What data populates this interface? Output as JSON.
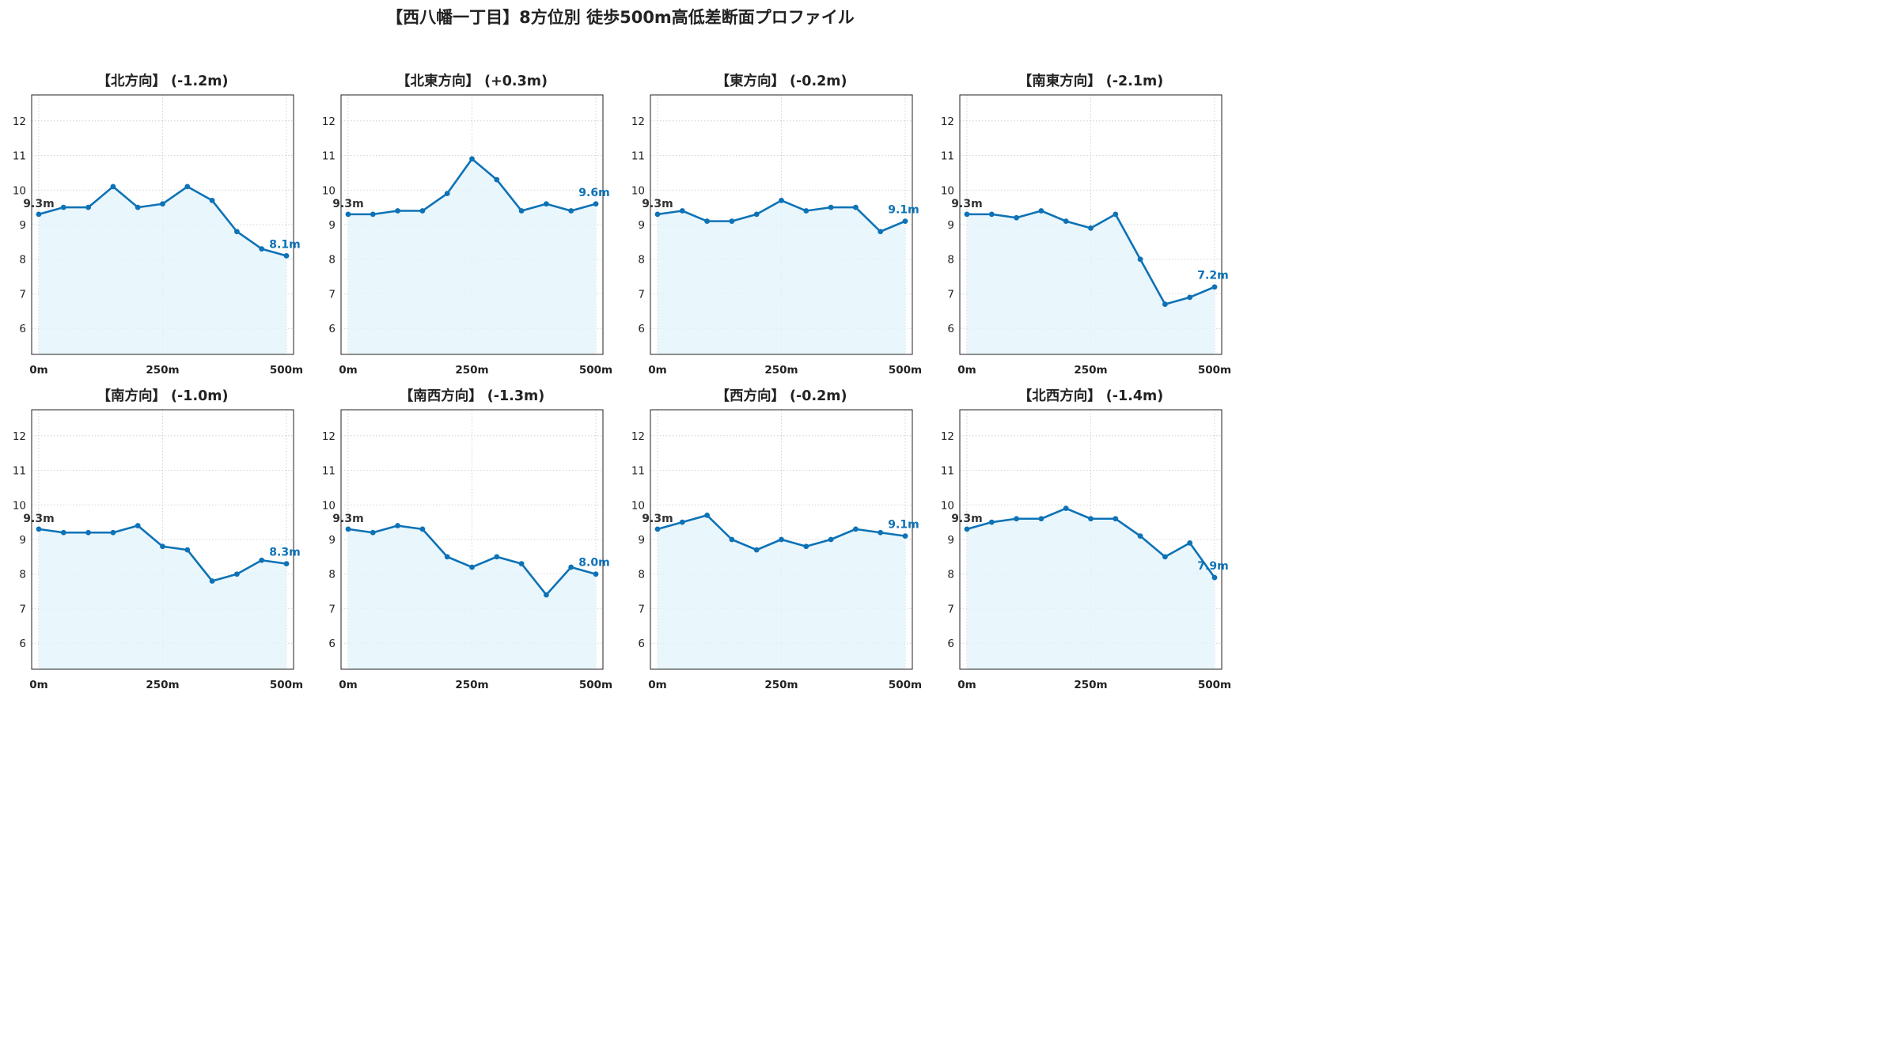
{
  "title": "【西八幡一丁目】8方位別 徒歩500m高低差断面プロファイル",
  "colors": {
    "line": "#0d72b6",
    "fill": "#e4f4fb",
    "start_label": "#333333"
  },
  "chart_data": [
    {
      "type": "area",
      "title": "【北方向】 (-1.2m)",
      "x": [
        0,
        50,
        100,
        150,
        200,
        250,
        300,
        350,
        400,
        450,
        500
      ],
      "y": [
        9.3,
        9.5,
        9.5,
        10.1,
        9.5,
        9.6,
        10.1,
        9.7,
        8.8,
        8.3,
        8.1
      ],
      "xticks": [
        "0m",
        "250m",
        "500m"
      ],
      "yticks": [
        6,
        7,
        8,
        9,
        10,
        11,
        12
      ],
      "ylim": [
        5.25,
        12.75
      ],
      "start_label": "9.3m",
      "end_label": "8.1m",
      "grid": true
    },
    {
      "type": "area",
      "title": "【北東方向】 (+0.3m)",
      "x": [
        0,
        50,
        100,
        150,
        200,
        250,
        300,
        350,
        400,
        450,
        500
      ],
      "y": [
        9.3,
        9.3,
        9.4,
        9.4,
        9.9,
        10.9,
        10.3,
        9.4,
        9.6,
        9.4,
        9.6
      ],
      "xticks": [
        "0m",
        "250m",
        "500m"
      ],
      "yticks": [
        6,
        7,
        8,
        9,
        10,
        11,
        12
      ],
      "ylim": [
        5.25,
        12.75
      ],
      "start_label": "9.3m",
      "end_label": "9.6m",
      "grid": true
    },
    {
      "type": "area",
      "title": "【東方向】 (-0.2m)",
      "x": [
        0,
        50,
        100,
        150,
        200,
        250,
        300,
        350,
        400,
        450,
        500
      ],
      "y": [
        9.3,
        9.4,
        9.1,
        9.1,
        9.3,
        9.7,
        9.4,
        9.5,
        9.5,
        8.8,
        9.1
      ],
      "xticks": [
        "0m",
        "250m",
        "500m"
      ],
      "yticks": [
        6,
        7,
        8,
        9,
        10,
        11,
        12
      ],
      "ylim": [
        5.25,
        12.75
      ],
      "start_label": "9.3m",
      "end_label": "9.1m",
      "grid": true
    },
    {
      "type": "area",
      "title": "【南東方向】 (-2.1m)",
      "x": [
        0,
        50,
        100,
        150,
        200,
        250,
        300,
        350,
        400,
        450,
        500
      ],
      "y": [
        9.3,
        9.3,
        9.2,
        9.4,
        9.1,
        8.9,
        9.3,
        8.0,
        6.7,
        6.9,
        7.2
      ],
      "xticks": [
        "0m",
        "250m",
        "500m"
      ],
      "yticks": [
        6,
        7,
        8,
        9,
        10,
        11,
        12
      ],
      "ylim": [
        5.25,
        12.75
      ],
      "start_label": "9.3m",
      "end_label": "7.2m",
      "grid": true
    },
    {
      "type": "area",
      "title": "【南方向】 (-1.0m)",
      "x": [
        0,
        50,
        100,
        150,
        200,
        250,
        300,
        350,
        400,
        450,
        500
      ],
      "y": [
        9.3,
        9.2,
        9.2,
        9.2,
        9.4,
        8.8,
        8.7,
        7.8,
        8.0,
        8.4,
        8.3
      ],
      "xticks": [
        "0m",
        "250m",
        "500m"
      ],
      "yticks": [
        6,
        7,
        8,
        9,
        10,
        11,
        12
      ],
      "ylim": [
        5.25,
        12.75
      ],
      "start_label": "9.3m",
      "end_label": "8.3m",
      "grid": true
    },
    {
      "type": "area",
      "title": "【南西方向】 (-1.3m)",
      "x": [
        0,
        50,
        100,
        150,
        200,
        250,
        300,
        350,
        400,
        450,
        500
      ],
      "y": [
        9.3,
        9.2,
        9.4,
        9.3,
        8.5,
        8.2,
        8.5,
        8.3,
        7.4,
        8.2,
        8.0
      ],
      "xticks": [
        "0m",
        "250m",
        "500m"
      ],
      "yticks": [
        6,
        7,
        8,
        9,
        10,
        11,
        12
      ],
      "ylim": [
        5.25,
        12.75
      ],
      "start_label": "9.3m",
      "end_label": "8.0m",
      "grid": true
    },
    {
      "type": "area",
      "title": "【西方向】 (-0.2m)",
      "x": [
        0,
        50,
        100,
        150,
        200,
        250,
        300,
        350,
        400,
        450,
        500
      ],
      "y": [
        9.3,
        9.5,
        9.7,
        9.0,
        8.7,
        9.0,
        8.8,
        9.0,
        9.3,
        9.2,
        9.1
      ],
      "xticks": [
        "0m",
        "250m",
        "500m"
      ],
      "yticks": [
        6,
        7,
        8,
        9,
        10,
        11,
        12
      ],
      "ylim": [
        5.25,
        12.75
      ],
      "start_label": "9.3m",
      "end_label": "9.1m",
      "grid": true
    },
    {
      "type": "area",
      "title": "【北西方向】 (-1.4m)",
      "x": [
        0,
        50,
        100,
        150,
        200,
        250,
        300,
        350,
        400,
        450,
        500
      ],
      "y": [
        9.3,
        9.5,
        9.6,
        9.6,
        9.9,
        9.6,
        9.6,
        9.1,
        8.5,
        8.9,
        7.9
      ],
      "xticks": [
        "0m",
        "250m",
        "500m"
      ],
      "yticks": [
        6,
        7,
        8,
        9,
        10,
        11,
        12
      ],
      "ylim": [
        5.25,
        12.75
      ],
      "start_label": "9.3m",
      "end_label": "7.9m",
      "grid": true
    }
  ]
}
